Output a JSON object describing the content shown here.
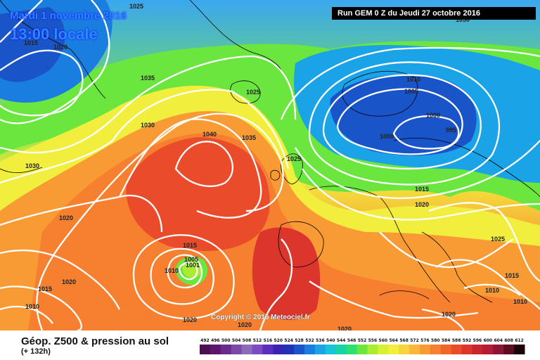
{
  "header": {
    "date": "Mardi 1 novembre 2016",
    "time": "13:00 locale",
    "run": "Run GEM 0 Z du Jeudi 27 octobre 2016"
  },
  "map": {
    "copyright": "Copyright © 2016 Meteociel.fr",
    "pressure_labels": [
      {
        "text": "1025"
      },
      {
        "text": "1015"
      },
      {
        "text": "1020"
      },
      {
        "text": "1035"
      },
      {
        "text": "1030"
      },
      {
        "text": "1040"
      },
      {
        "text": "1035"
      },
      {
        "text": "1030"
      },
      {
        "text": "1020"
      },
      {
        "text": "1025"
      },
      {
        "text": "1010"
      },
      {
        "text": "1005"
      },
      {
        "text": "1000"
      },
      {
        "text": "1000"
      },
      {
        "text": "995"
      },
      {
        "text": "1015"
      },
      {
        "text": "1020"
      },
      {
        "text": "1015"
      },
      {
        "text": "1005"
      },
      {
        "text": "1001"
      },
      {
        "text": "1010"
      },
      {
        "text": "1020"
      },
      {
        "text": "1015"
      },
      {
        "text": "1010"
      },
      {
        "text": "1020"
      },
      {
        "text": "1020"
      },
      {
        "text": "1020"
      },
      {
        "text": "1025"
      },
      {
        "text": "1015"
      },
      {
        "text": "1010"
      },
      {
        "text": "1010"
      },
      {
        "text": "1030"
      },
      {
        "text": "1020"
      },
      {
        "text": "1025"
      }
    ]
  },
  "footer": {
    "title": "Géop. Z500 & pression au sol",
    "subtitle": "(+ 132h)"
  },
  "legend": {
    "values": [
      "492",
      "496",
      "500",
      "504",
      "508",
      "512",
      "516",
      "520",
      "524",
      "528",
      "532",
      "536",
      "540",
      "544",
      "548",
      "552",
      "556",
      "560",
      "564",
      "568",
      "572",
      "576",
      "580",
      "584",
      "588",
      "592",
      "596",
      "600",
      "604",
      "608",
      "612"
    ],
    "colors": [
      "#4b0f52",
      "#5d1570",
      "#6a2b8c",
      "#7a4aa5",
      "#8d6bb8",
      "#7c4bc4",
      "#5a2fc0",
      "#3a22b5",
      "#2132b8",
      "#1a54c9",
      "#1a7de0",
      "#1aa3e6",
      "#17c6d6",
      "#18d3a4",
      "#2bdf70",
      "#6be63e",
      "#a9ec32",
      "#d7f033",
      "#f2ee3d",
      "#f8d63b",
      "#f9b83a",
      "#f99b35",
      "#f6802f",
      "#f2652a",
      "#ea4b2a",
      "#dc352c",
      "#c8262f",
      "#b31c33",
      "#8e1537",
      "#5a0e20",
      "#1a0508"
    ]
  }
}
